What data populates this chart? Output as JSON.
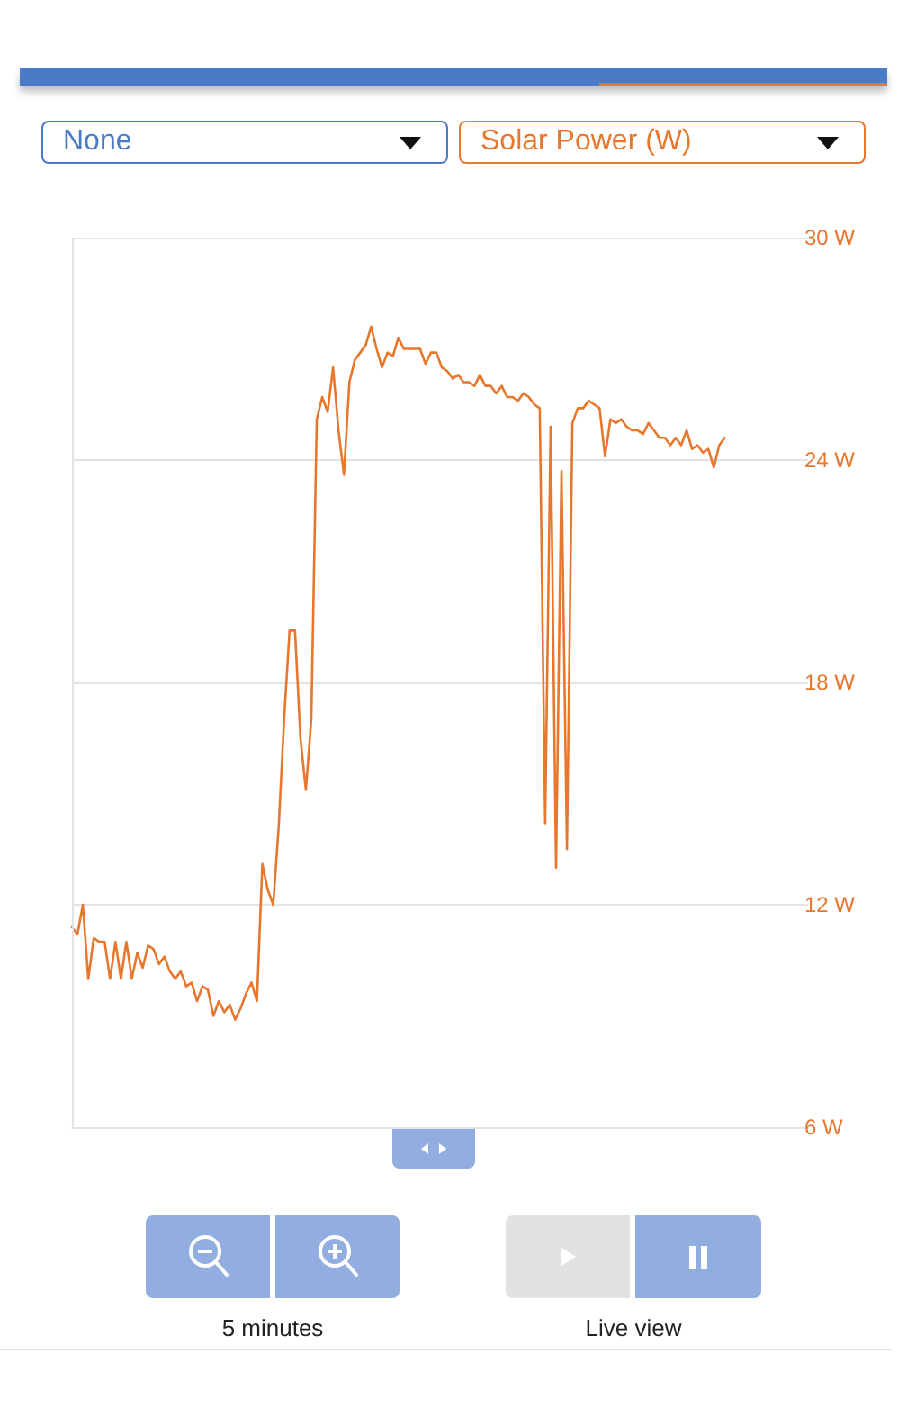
{
  "chart_data": {
    "type": "line",
    "ylabel": "Solar Power (W)",
    "annotations": [
      "None",
      "5 minutes",
      "Live view"
    ],
    "categories": [
      null,
      null,
      null,
      null,
      null,
      null,
      null,
      null,
      null,
      null,
      null,
      null,
      null,
      null,
      null,
      null,
      null,
      null,
      null,
      null,
      null,
      null,
      null,
      null,
      null,
      null,
      null,
      null,
      null,
      null,
      null,
      null,
      null,
      null,
      null,
      null,
      null,
      null,
      null,
      null,
      null,
      null,
      null,
      null,
      null,
      null,
      null,
      null,
      null,
      null,
      null,
      null,
      null,
      null,
      null,
      null,
      null,
      null,
      null,
      null,
      null,
      null,
      null,
      null,
      null,
      null,
      null,
      null,
      null,
      null,
      null,
      null,
      null,
      null,
      null,
      null,
      null,
      null,
      null,
      null,
      null,
      null,
      null,
      null,
      null,
      null,
      null,
      null,
      null,
      null,
      null,
      null,
      null,
      null,
      null,
      null,
      null,
      null,
      null,
      null,
      null,
      null,
      null,
      null,
      null,
      null,
      null,
      null,
      null,
      null,
      null,
      null,
      null,
      null,
      null,
      null,
      null,
      null,
      null,
      null,
      null,
      null,
      null,
      null,
      null,
      null,
      null,
      null,
      null,
      null,
      null,
      null,
      null,
      null,
      null
    ],
    "series": [
      {
        "color": "#e8772e",
        "values": [
          11.4,
          11.2,
          12.0,
          10.0,
          11.1,
          11.0,
          11.0,
          10.0,
          11.0,
          10.0,
          11.0,
          10.0,
          10.7,
          10.3,
          10.9,
          10.8,
          10.4,
          10.6,
          10.2,
          10.0,
          10.2,
          9.8,
          9.9,
          9.4,
          9.8,
          9.7,
          9.0,
          9.4,
          9.1,
          9.3,
          8.9,
          9.2,
          9.6,
          9.9,
          9.4,
          13.1,
          12.4,
          12.0,
          14.1,
          17.0,
          19.4,
          19.4,
          16.5,
          15.1,
          17.0,
          25.1,
          25.7,
          25.3,
          26.5,
          24.8,
          23.6,
          26.1,
          26.7,
          26.9,
          27.1,
          27.6,
          27.0,
          26.5,
          26.9,
          26.8,
          27.3,
          27.0,
          27.0,
          27.0,
          27.0,
          26.6,
          26.9,
          26.9,
          26.5,
          26.4,
          26.2,
          26.3,
          26.1,
          26.1,
          26.0,
          26.3,
          26.0,
          26.0,
          25.8,
          26.0,
          25.7,
          25.7,
          25.6,
          25.8,
          25.7,
          25.5,
          25.4,
          14.2,
          24.9,
          13.0,
          23.7,
          13.5,
          25.0,
          25.4,
          25.4,
          25.6,
          25.5,
          25.4,
          24.1,
          25.1,
          25.0,
          25.1,
          24.9,
          24.8,
          24.8,
          24.7,
          25.0,
          24.8,
          24.6,
          24.6,
          24.4,
          24.6,
          24.4,
          24.8,
          24.3,
          24.4,
          24.2,
          24.3,
          23.8,
          24.4,
          24.6,
          null,
          null,
          null,
          null,
          null,
          null,
          null,
          null,
          null,
          null,
          null,
          null,
          null,
          null
        ]
      }
    ],
    "ylim": [
      6,
      30
    ],
    "yticks": [
      {
        "value": 6,
        "label": "6 W"
      },
      {
        "value": 12,
        "label": "12 W"
      },
      {
        "value": 18,
        "label": "18 W"
      },
      {
        "value": 24,
        "label": "24 W"
      },
      {
        "value": 30,
        "label": "30 W"
      }
    ],
    "grid": "y",
    "tick_labels": "y",
    "line_style": "solid"
  }
}
